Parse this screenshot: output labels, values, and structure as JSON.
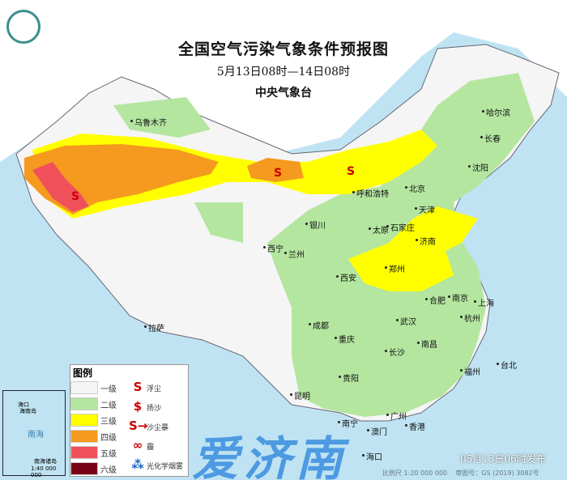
{
  "header": {
    "title": "全国空气污染气象条件预报图",
    "period": "5月13日08时—14日08时",
    "issuer": "中央气象台"
  },
  "legend": {
    "title": "图例",
    "levels": [
      {
        "label": "一级",
        "color": "#f5f5f5"
      },
      {
        "label": "二级",
        "color": "#b4e6a0"
      },
      {
        "label": "三级",
        "color": "#ffff00"
      },
      {
        "label": "四级",
        "color": "#f59a1e"
      },
      {
        "label": "五级",
        "color": "#f0505a"
      },
      {
        "label": "六级",
        "color": "#7a0018"
      }
    ],
    "symbols": [
      {
        "label": "浮尘",
        "icon": "floating-dust-icon",
        "glyph": "S"
      },
      {
        "label": "扬沙",
        "icon": "blowing-sand-icon",
        "glyph": "$"
      },
      {
        "label": "沙尘暴",
        "icon": "sandstorm-icon",
        "glyph": "S→"
      },
      {
        "label": "霾",
        "icon": "haze-icon",
        "glyph": "∞"
      },
      {
        "label": "光化学烟雾",
        "icon": "photochemical-smog-icon",
        "glyph": "⁂"
      }
    ]
  },
  "inset": {
    "sea": "南海",
    "island": "海南岛",
    "city": "海口",
    "title": "南海诸岛",
    "scale": "1:40 000 000"
  },
  "cities": [
    "哈尔滨",
    "长春",
    "沈阳",
    "乌鲁木齐",
    "北京",
    "天津",
    "呼和浩特",
    "石家庄",
    "太原",
    "济南",
    "银川",
    "西宁",
    "兰州",
    "郑州",
    "西安",
    "合肥",
    "南京",
    "上海",
    "杭州",
    "武汉",
    "南昌",
    "长沙",
    "福州",
    "台北",
    "成都",
    "重庆",
    "贵阳",
    "拉萨",
    "昆明",
    "南宁",
    "广州",
    "澳门",
    "香港",
    "海口"
  ],
  "footer": {
    "published": "05月13日06时发布",
    "scale": "比例尺 1:20 000 000",
    "map_no": "审图号：GS (2019) 3082号"
  },
  "watermark": "爱济南"
}
